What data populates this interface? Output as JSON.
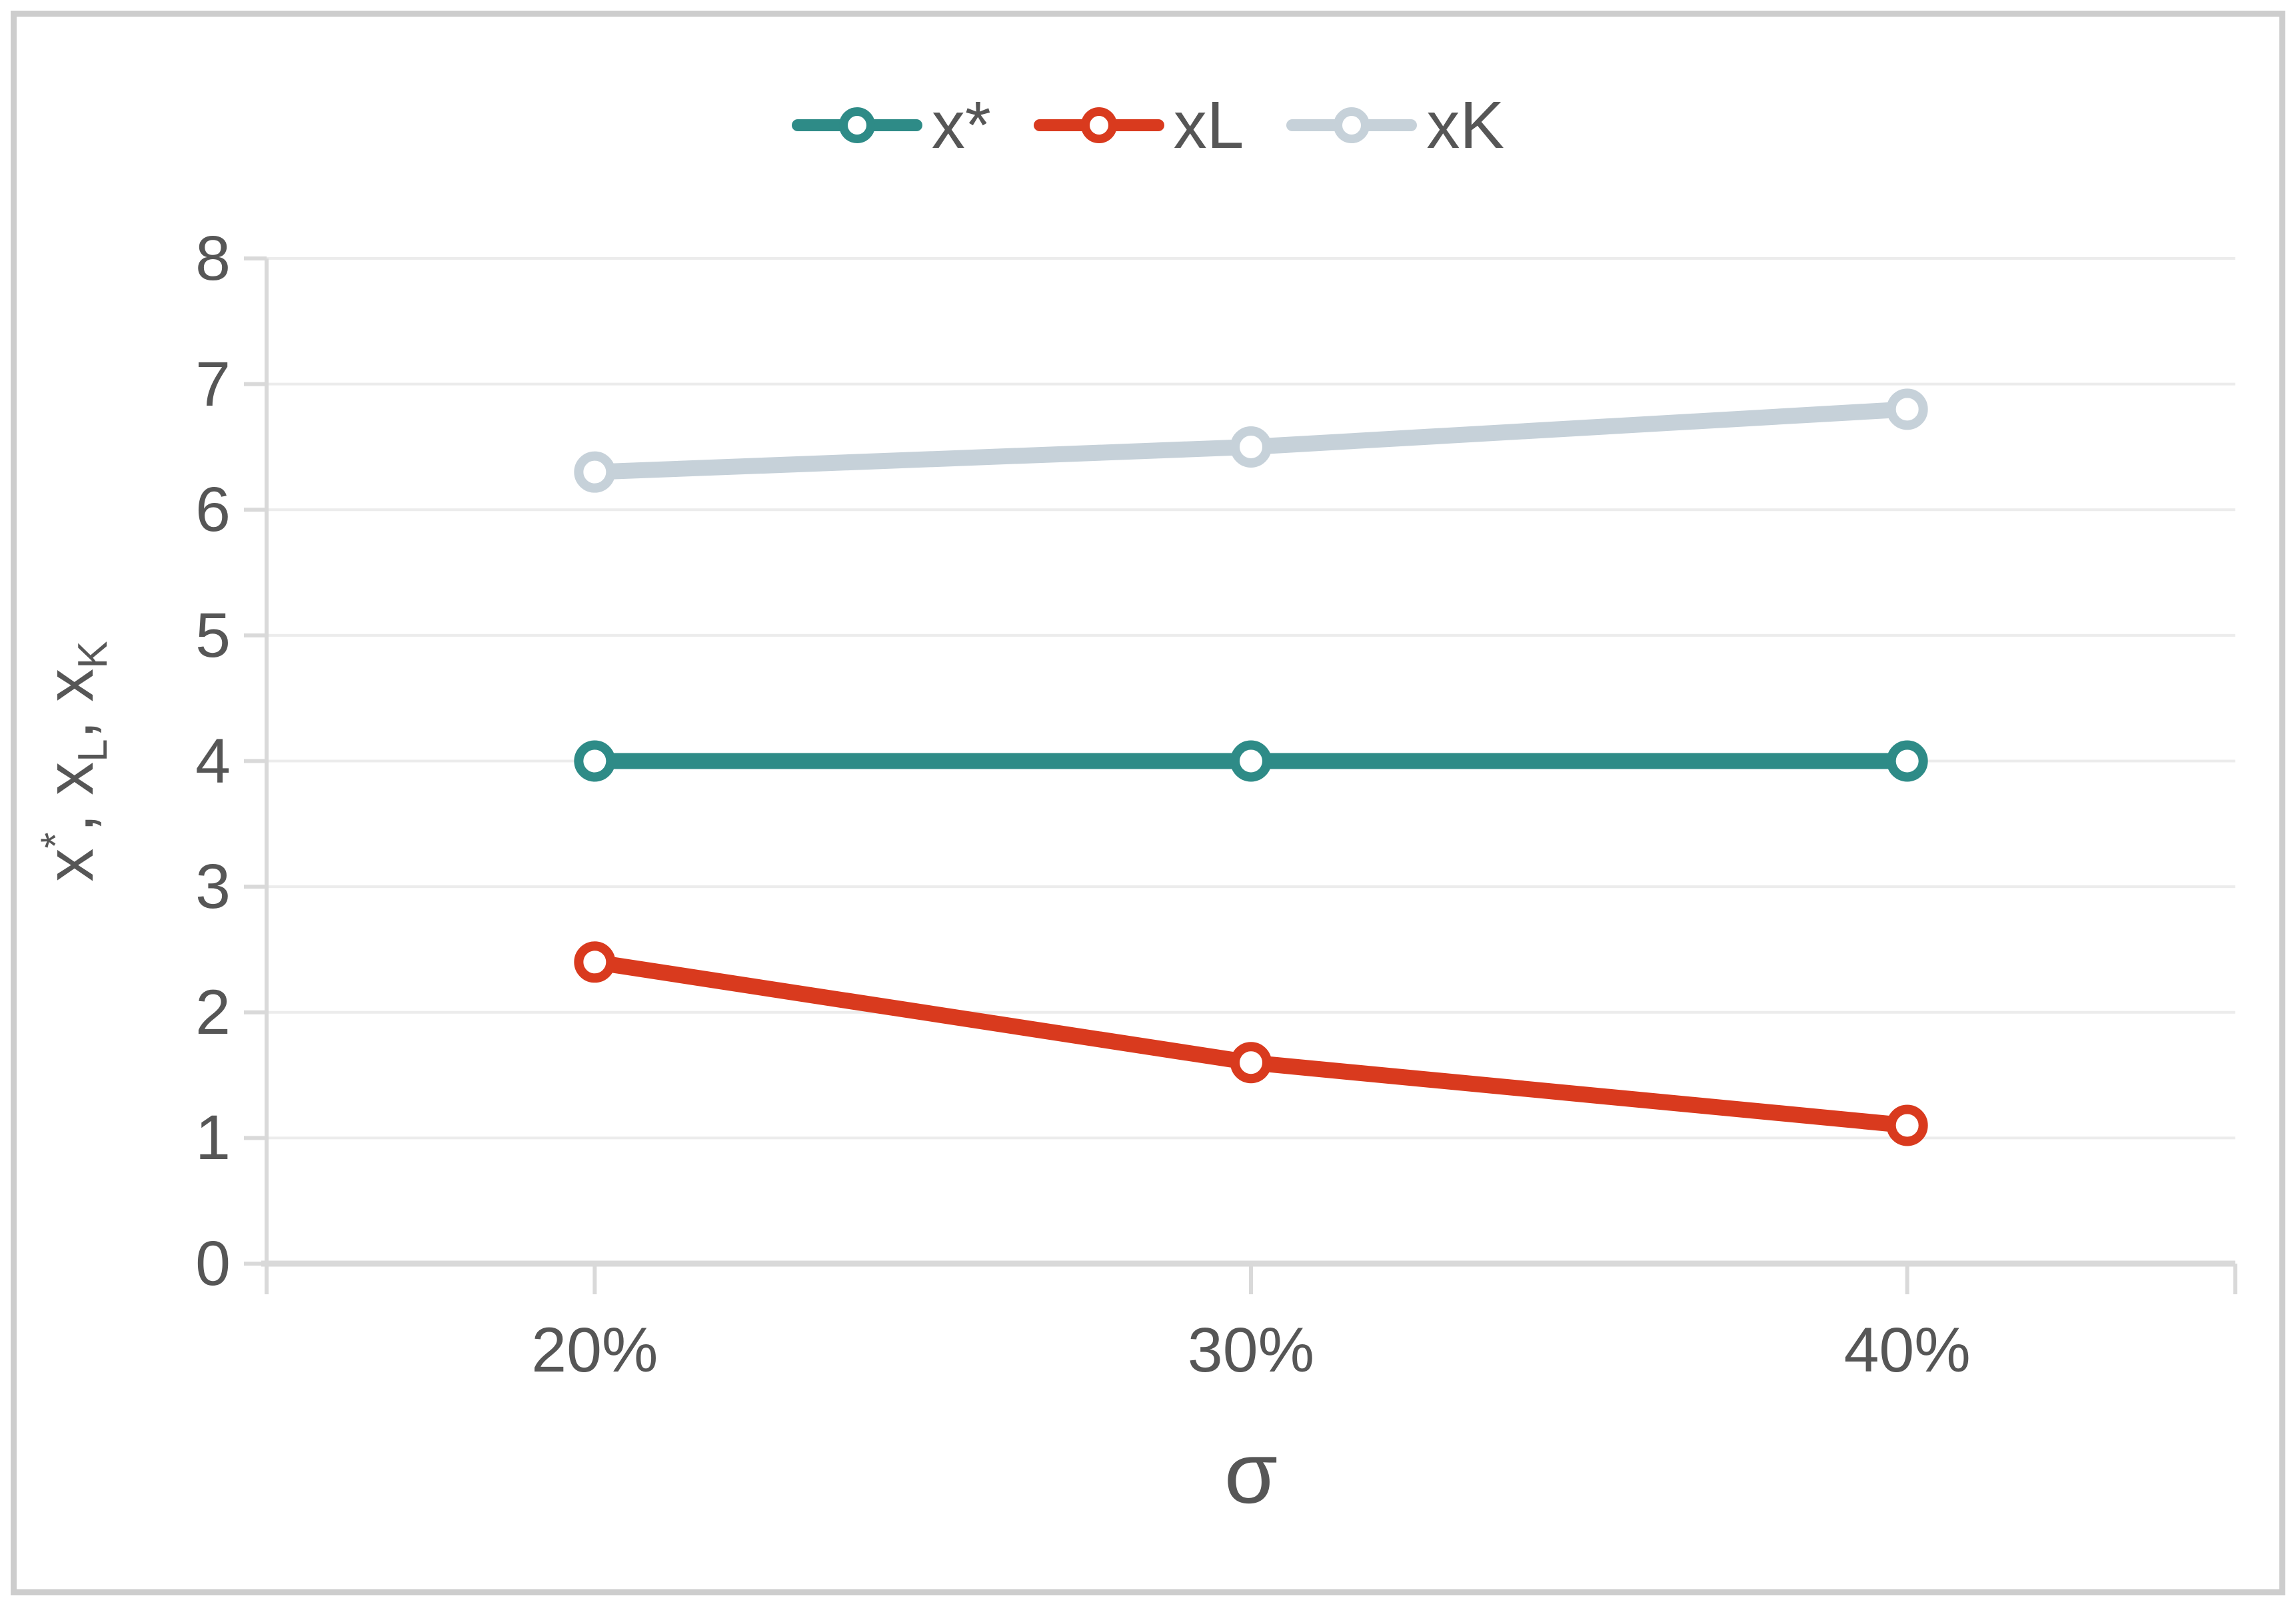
{
  "chart_data": {
    "type": "line",
    "title": "",
    "categories": [
      "20%",
      "30%",
      "40%"
    ],
    "series": [
      {
        "name": "x*",
        "values": [
          4.0,
          4.0,
          4.0
        ],
        "color": "#2e8b87"
      },
      {
        "name": "xL",
        "values": [
          2.4,
          1.6,
          1.1
        ],
        "color": "#d93a1e"
      },
      {
        "name": "xK",
        "values": [
          6.3,
          6.5,
          6.8
        ],
        "color": "#c6d1d9"
      }
    ],
    "xlabel": "σ",
    "ylabel": "x*, xL, xK",
    "ylabel_parts": [
      {
        "text": "x"
      },
      {
        "sup": "*"
      },
      {
        "text": ", x"
      },
      {
        "sub": "L"
      },
      {
        "text": ", x"
      },
      {
        "sub": "K"
      }
    ],
    "ylim": [
      0,
      8
    ],
    "yticks": [
      0,
      1,
      2,
      3,
      4,
      5,
      6,
      7,
      8
    ],
    "grid": "horizontal",
    "legend_position": "top-center",
    "marker": "open-circle"
  },
  "colors": {
    "gridline": "#ececec",
    "axis": "#d9d9d9",
    "text": "#565656",
    "frame_border": "#cdcdcd",
    "marker_fill": "#ffffff",
    "background": "#ffffff"
  }
}
